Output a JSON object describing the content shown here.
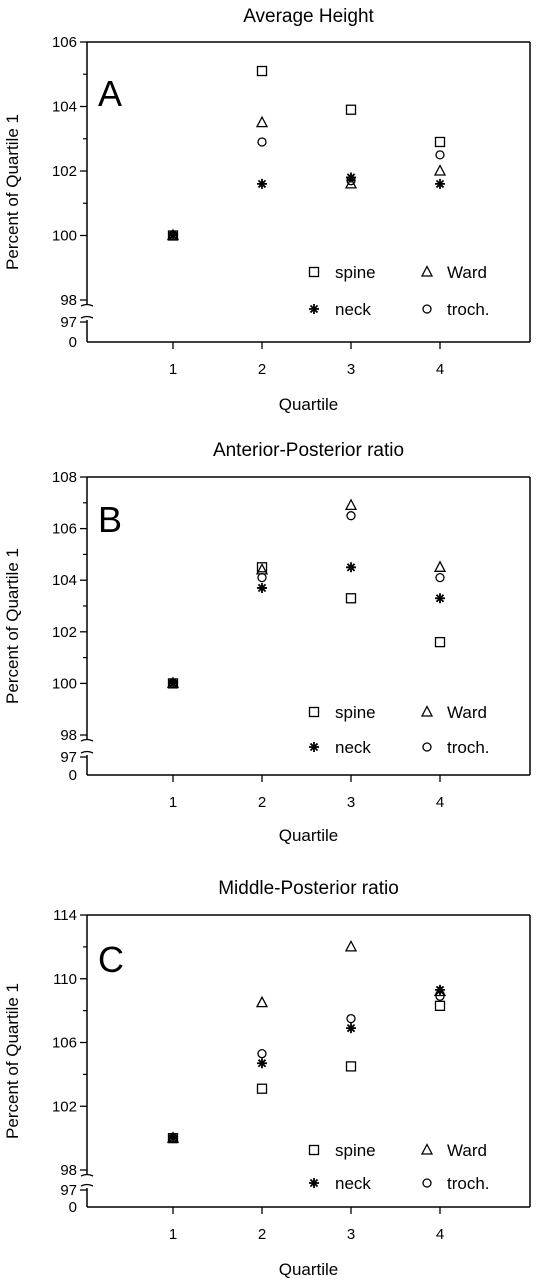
{
  "chart_data": [
    {
      "type": "scatter",
      "panel_label": "A",
      "title": "Average Height",
      "xlabel": "Quartile",
      "ylabel": "Percent of Quartile 1",
      "x_ticks": [
        "1",
        "2",
        "3",
        "4"
      ],
      "y_ticks": [
        "100",
        "102",
        "104",
        "106"
      ],
      "y_break_ticks": [
        "97",
        "98"
      ],
      "y_zero_label": "0",
      "ylim": [
        98,
        106
      ],
      "legend_placement": "bottom-right",
      "series": [
        {
          "name": "spine",
          "marker": "square",
          "x": [
            1,
            2,
            3,
            4
          ],
          "y": [
            100,
            105.1,
            103.9,
            102.9
          ]
        },
        {
          "name": "Ward",
          "marker": "triangle",
          "x": [
            1,
            2,
            3,
            4
          ],
          "y": [
            100,
            103.5,
            101.6,
            102.0
          ]
        },
        {
          "name": "neck",
          "marker": "asterisk",
          "x": [
            1,
            2,
            3,
            4
          ],
          "y": [
            100,
            101.6,
            101.8,
            101.6
          ]
        },
        {
          "name": "troch.",
          "marker": "circle",
          "x": [
            1,
            2,
            3,
            4
          ],
          "y": [
            100,
            102.9,
            101.7,
            102.5
          ]
        }
      ]
    },
    {
      "type": "scatter",
      "panel_label": "B",
      "title": "Anterior-Posterior ratio",
      "xlabel": "Quartile",
      "ylabel": "Percent of Quartile 1",
      "x_ticks": [
        "1",
        "2",
        "3",
        "4"
      ],
      "y_ticks": [
        "100",
        "102",
        "104",
        "106",
        "108"
      ],
      "y_break_ticks": [
        "97",
        "98"
      ],
      "y_zero_label": "0",
      "ylim": [
        98,
        108
      ],
      "legend_placement": "bottom-right",
      "series": [
        {
          "name": "spine",
          "marker": "square",
          "x": [
            1,
            2,
            3,
            4
          ],
          "y": [
            100,
            104.5,
            103.3,
            101.6
          ]
        },
        {
          "name": "Ward",
          "marker": "triangle",
          "x": [
            1,
            2,
            3,
            4
          ],
          "y": [
            100,
            104.4,
            106.9,
            104.5
          ]
        },
        {
          "name": "neck",
          "marker": "asterisk",
          "x": [
            1,
            2,
            3,
            4
          ],
          "y": [
            100,
            103.7,
            104.5,
            103.3
          ]
        },
        {
          "name": "troch.",
          "marker": "circle",
          "x": [
            1,
            2,
            3,
            4
          ],
          "y": [
            100,
            104.1,
            106.5,
            104.1
          ]
        }
      ]
    },
    {
      "type": "scatter",
      "panel_label": "C",
      "title": "Middle-Posterior ratio",
      "xlabel": "Quartile",
      "ylabel": "Percent of Quartile 1",
      "x_ticks": [
        "1",
        "2",
        "3",
        "4"
      ],
      "y_ticks": [
        "102",
        "106",
        "110",
        "114"
      ],
      "y_break_ticks": [
        "97",
        "98"
      ],
      "y_zero_label": "0",
      "ylim": [
        98,
        114
      ],
      "legend_placement": "bottom-right",
      "series": [
        {
          "name": "spine",
          "marker": "square",
          "x": [
            1,
            2,
            3,
            4
          ],
          "y": [
            100,
            103.1,
            104.5,
            108.3
          ]
        },
        {
          "name": "Ward",
          "marker": "triangle",
          "x": [
            1,
            2,
            3,
            4
          ],
          "y": [
            100,
            108.5,
            112.0,
            109.2
          ]
        },
        {
          "name": "neck",
          "marker": "asterisk",
          "x": [
            1,
            2,
            3,
            4
          ],
          "y": [
            100,
            104.7,
            106.9,
            109.3
          ]
        },
        {
          "name": "troch.",
          "marker": "circle",
          "x": [
            1,
            2,
            3,
            4
          ],
          "y": [
            100,
            105.3,
            107.5,
            108.9
          ]
        }
      ]
    }
  ]
}
